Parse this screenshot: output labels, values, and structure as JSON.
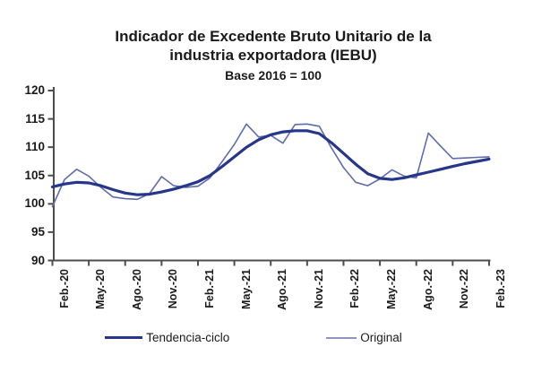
{
  "header": {
    "title_line1": "Indicador de Excedente Bruto Unitario de la",
    "title_line2": "industria exportadora (IEBU)",
    "subtitle": "Base 2016 = 100"
  },
  "colors": {
    "trend_line": "#26368B",
    "original_line": "#5F6CAE",
    "original_legend_swatch": "#8C95C0",
    "axis": "#4d4d4d",
    "text": "#1a1a1a",
    "background": "#ffffff"
  },
  "legend": {
    "items": [
      {
        "label": "Tendencia-ciclo",
        "swatch_color": "#26368B"
      },
      {
        "label": "Original",
        "swatch_color": "#8C95C0"
      }
    ]
  },
  "chart_data": {
    "type": "line",
    "title": "Indicador de Excedente Bruto Unitario de la industria exportadora (IEBU)",
    "subtitle": "Base 2016 = 100",
    "xlabel": "",
    "ylabel": "",
    "ylim": [
      90,
      120
    ],
    "y_ticks": [
      90,
      95,
      100,
      105,
      110,
      115,
      120
    ],
    "grid": false,
    "legend_position": "bottom",
    "x": [
      "Feb-20",
      "Mar-20",
      "Abr-20",
      "May-20",
      "Jun-20",
      "Jul-20",
      "Ago-20",
      "Sep-20",
      "Oct-20",
      "Nov-20",
      "Dic-20",
      "Ene-21",
      "Feb-21",
      "Mar-21",
      "Abr-21",
      "May-21",
      "Jun-21",
      "Jul-21",
      "Ago-21",
      "Sep-21",
      "Oct-21",
      "Nov-21",
      "Dic-21",
      "Ene-22",
      "Feb-22",
      "Mar-22",
      "Abr-22",
      "May-22",
      "Jun-22",
      "Jul-22",
      "Ago-22",
      "Sep-22",
      "Oct-22",
      "Nov-22",
      "Dic-22",
      "Ene-23",
      "Feb-23"
    ],
    "x_tick_labels": [
      "Feb.-20",
      "May.-20",
      "Ago.-20",
      "Nov.-20",
      "Feb.-21",
      "May.-21",
      "Ago.-21",
      "Nov.-21",
      "Feb.-22",
      "May.-22",
      "Ago.-22",
      "Nov.-22",
      "Feb.-23"
    ],
    "x_tick_step": 3,
    "series": [
      {
        "name": "Tendencia-ciclo",
        "color": "#26368B",
        "width": 3.2,
        "values": [
          103.0,
          103.5,
          103.8,
          103.7,
          103.2,
          102.5,
          101.9,
          101.6,
          101.7,
          102.1,
          102.6,
          103.2,
          103.9,
          105.0,
          106.6,
          108.3,
          110.0,
          111.3,
          112.2,
          112.7,
          112.9,
          112.9,
          112.4,
          110.8,
          108.9,
          107.0,
          105.3,
          104.5,
          104.3,
          104.6,
          105.1,
          105.6,
          106.1,
          106.6,
          107.1,
          107.5,
          107.9
        ]
      },
      {
        "name": "Original",
        "color": "#5F6CAE",
        "width": 1.6,
        "values": [
          99.5,
          104.3,
          106.1,
          104.9,
          102.9,
          101.2,
          100.9,
          100.8,
          101.8,
          104.8,
          103.2,
          102.9,
          103.1,
          104.6,
          107.5,
          110.5,
          114.1,
          111.8,
          112.1,
          110.7,
          114.0,
          114.1,
          113.7,
          109.9,
          106.4,
          103.8,
          103.2,
          104.4,
          106.0,
          104.9,
          104.6,
          112.5,
          110.2,
          108.0,
          108.1,
          108.2,
          108.3
        ]
      }
    ]
  }
}
